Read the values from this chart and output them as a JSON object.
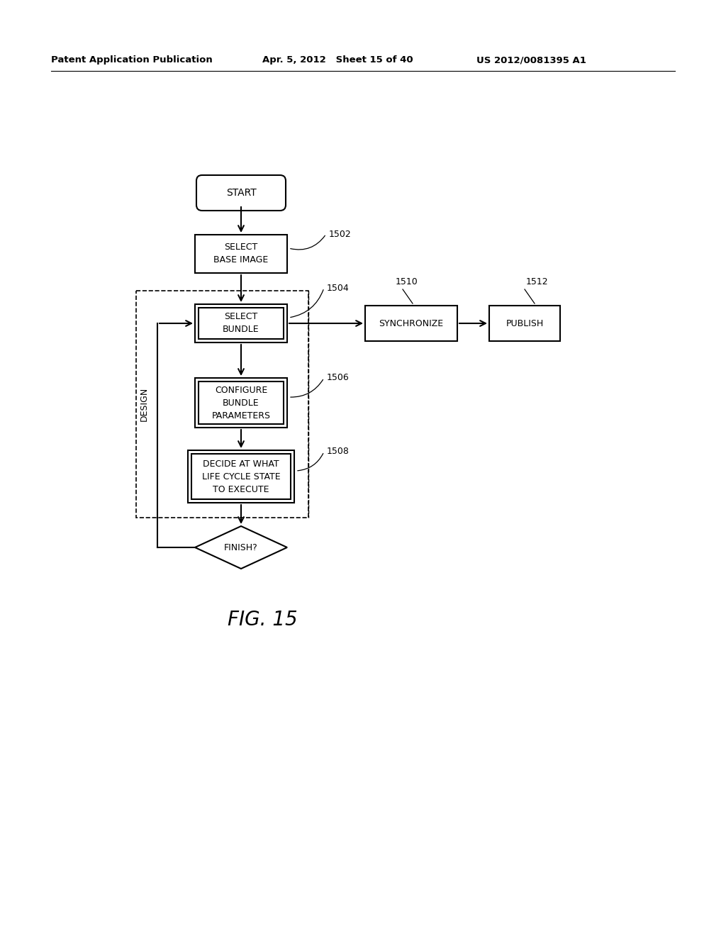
{
  "bg_color": "#ffffff",
  "header_left": "Patent Application Publication",
  "header_mid": "Apr. 5, 2012   Sheet 15 of 40",
  "header_right": "US 2012/0081395 A1",
  "figure_label": "FIG. 15"
}
